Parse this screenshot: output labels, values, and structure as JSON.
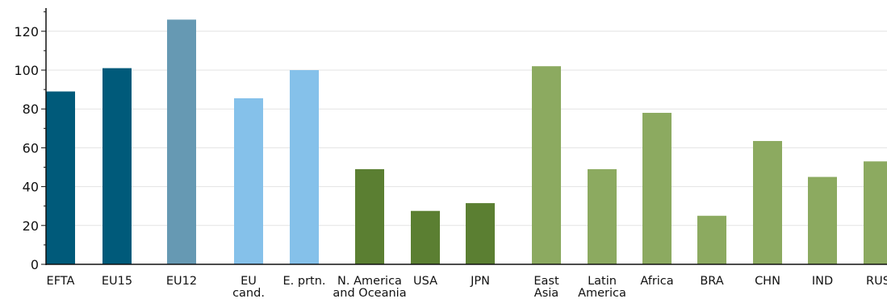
{
  "chart_data": {
    "type": "bar",
    "title": "",
    "xlabel": "",
    "ylabel": "",
    "ylim": [
      0,
      130
    ],
    "yticks": [
      0,
      20,
      40,
      60,
      80,
      100,
      120
    ],
    "grid": true,
    "legend": "none",
    "categories": [
      [
        "EFTA"
      ],
      [
        "EU15"
      ],
      [
        "EU12"
      ],
      [
        "EU",
        "cand."
      ],
      [
        "E. prtn."
      ],
      [
        "N. America",
        "and Oceania"
      ],
      [
        "USA"
      ],
      [
        "JPN"
      ],
      [
        "East",
        "Asia"
      ],
      [
        "Latin",
        "America"
      ],
      [
        "Africa"
      ],
      [
        "BRA"
      ],
      [
        "CHN"
      ],
      [
        "IND"
      ],
      [
        "RUS"
      ]
    ],
    "values": [
      89,
      101,
      126,
      85.5,
      100,
      49,
      27.5,
      31.5,
      102,
      49,
      78,
      25,
      63.5,
      45,
      53
    ],
    "colors": [
      "#005a7a",
      "#005a7a",
      "#6699b3",
      "#85c1ea",
      "#85c1ea",
      "#5b7f32",
      "#5b7f32",
      "#5b7f32",
      "#8caa60",
      "#8caa60",
      "#8caa60",
      "#8caa60",
      "#8caa60",
      "#8caa60",
      "#8caa60"
    ],
    "gridline_color": "#e3e3e3",
    "axis_color": "#111111"
  }
}
